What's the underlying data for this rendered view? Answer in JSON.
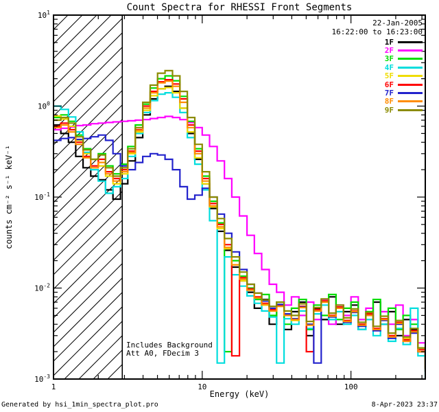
{
  "title": "Count Spectra for RHESSI Front Segments",
  "annotations": {
    "date": "22-Jan-2005",
    "time_range": "16:22:00 to 16:23:00",
    "note1": "Includes Background",
    "note2": "Att A0, FDecim 3"
  },
  "footer": {
    "left": "Generated by hsi_1min_spectra_plot.pro",
    "right": "8-Apr-2023 23:37"
  },
  "chart_data": {
    "type": "line",
    "step": true,
    "x_scale": "log",
    "y_scale": "log",
    "xlabel": "Energy (keV)",
    "ylabel": "counts cm⁻² s⁻¹ keV⁻¹",
    "xlim": [
      1,
      316
    ],
    "ylim": [
      0.001,
      10
    ],
    "grid": false,
    "legend_position": "top-right",
    "x_major_ticks": [
      {
        "value": 1,
        "label": "1"
      },
      {
        "value": 10,
        "label": "10"
      },
      {
        "value": 100,
        "label": "100"
      }
    ],
    "y_major_ticks": [
      {
        "exp": 1,
        "label": "10^1"
      },
      {
        "exp": 0,
        "label": "10^0"
      },
      {
        "exp": -1,
        "label": "10^-1"
      },
      {
        "exp": -2,
        "label": "10^-2"
      },
      {
        "exp": -3,
        "label": "10^-3"
      }
    ],
    "hatch_region": {
      "xmin": 1,
      "xmax": 2.9
    },
    "energies_keV": [
      1.0,
      1.12,
      1.26,
      1.41,
      1.58,
      1.78,
      2.0,
      2.24,
      2.51,
      2.82,
      3.16,
      3.55,
      3.98,
      4.47,
      5.01,
      5.62,
      6.31,
      7.08,
      7.94,
      8.91,
      10.0,
      11.2,
      12.6,
      14.1,
      15.8,
      17.8,
      20.0,
      22.4,
      25.1,
      28.2,
      31.6,
      35.5,
      39.8,
      44.7,
      50.1,
      56.2,
      63.1,
      70.8,
      79.4,
      89.1,
      100.0,
      112.0,
      126.0,
      141.0,
      158.0,
      178.0,
      200.0,
      224.0,
      251.0,
      282.0,
      316.0
    ],
    "series": [
      {
        "name": "1F",
        "color": "#000000",
        "values": [
          0.62,
          0.5,
          0.4,
          0.28,
          0.21,
          0.17,
          0.155,
          0.12,
          0.095,
          0.14,
          0.25,
          0.45,
          0.8,
          1.2,
          1.55,
          1.65,
          1.45,
          0.95,
          0.5,
          0.26,
          0.14,
          0.075,
          0.042,
          0.026,
          0.017,
          0.012,
          0.009,
          0.006,
          0.0075,
          0.004,
          0.0065,
          0.0035,
          0.0055,
          0.007,
          0.003,
          0.006,
          0.0045,
          0.008,
          0.004,
          0.0055,
          0.0065,
          0.0035,
          0.005,
          0.007,
          0.004,
          0.0055,
          0.003,
          0.0045,
          0.0035,
          0.002,
          0.0013
        ]
      },
      {
        "name": "2F",
        "color": "#FF00FF",
        "values": [
          0.55,
          0.57,
          0.59,
          0.61,
          0.62,
          0.64,
          0.65,
          0.66,
          0.67,
          0.68,
          0.69,
          0.7,
          0.71,
          0.73,
          0.75,
          0.77,
          0.75,
          0.71,
          0.66,
          0.58,
          0.48,
          0.36,
          0.25,
          0.16,
          0.1,
          0.062,
          0.038,
          0.024,
          0.016,
          0.011,
          0.009,
          0.0065,
          0.008,
          0.005,
          0.007,
          0.0045,
          0.0075,
          0.004,
          0.0065,
          0.005,
          0.008,
          0.0045,
          0.006,
          0.0035,
          0.0055,
          0.004,
          0.0065,
          0.003,
          0.0045,
          0.0025,
          0.0016
        ]
      },
      {
        "name": "3F",
        "color": "#00DD00",
        "values": [
          0.75,
          0.8,
          0.68,
          0.48,
          0.34,
          0.26,
          0.3,
          0.22,
          0.18,
          0.23,
          0.36,
          0.62,
          1.05,
          1.58,
          2.0,
          2.15,
          1.9,
          1.28,
          0.68,
          0.34,
          0.17,
          0.09,
          0.052,
          0.002,
          0.02,
          0.0135,
          0.01,
          0.0075,
          0.0085,
          0.005,
          0.007,
          0.004,
          0.006,
          0.0075,
          0.0035,
          0.0065,
          0.005,
          0.0085,
          0.0045,
          0.006,
          0.007,
          0.004,
          0.0055,
          0.0075,
          0.0045,
          0.006,
          0.0035,
          0.005,
          0.004,
          0.0022,
          0.0012
        ]
      },
      {
        "name": "4F",
        "color": "#00DDDD",
        "values": [
          1.0,
          0.92,
          0.76,
          0.52,
          0.31,
          0.2,
          0.15,
          0.11,
          0.13,
          0.16,
          0.28,
          0.5,
          0.85,
          1.15,
          1.35,
          1.4,
          1.25,
          0.85,
          0.45,
          0.23,
          0.12,
          0.055,
          0.0015,
          0.022,
          0.014,
          0.0105,
          0.0082,
          0.0068,
          0.0056,
          0.0048,
          0.0015,
          0.0046,
          0.004,
          0.0056,
          0.0036,
          0.0052,
          0.0065,
          0.0045,
          0.0055,
          0.004,
          0.005,
          0.0035,
          0.0045,
          0.003,
          0.004,
          0.0026,
          0.0036,
          0.0024,
          0.006,
          0.0018,
          0.001
        ]
      },
      {
        "name": "5F",
        "color": "#EFDC00",
        "values": [
          0.78,
          0.72,
          0.6,
          0.42,
          0.3,
          0.26,
          0.22,
          0.17,
          0.14,
          0.18,
          0.3,
          0.52,
          0.9,
          1.3,
          1.55,
          1.6,
          1.4,
          0.95,
          0.52,
          0.27,
          0.14,
          0.078,
          0.045,
          0.027,
          0.018,
          0.012,
          0.0095,
          0.0078,
          0.0065,
          0.0056,
          0.0063,
          0.005,
          0.0044,
          0.0062,
          0.004,
          0.0056,
          0.0072,
          0.005,
          0.006,
          0.0044,
          0.0056,
          0.004,
          0.005,
          0.0035,
          0.0046,
          0.003,
          0.0042,
          0.0028,
          0.0034,
          0.0021,
          0.0013
        ]
      },
      {
        "name": "6F",
        "color": "#FF0000",
        "values": [
          0.6,
          0.65,
          0.55,
          0.4,
          0.28,
          0.22,
          0.26,
          0.19,
          0.16,
          0.2,
          0.32,
          0.55,
          1.0,
          1.45,
          1.85,
          1.95,
          1.75,
          1.2,
          0.62,
          0.32,
          0.16,
          0.085,
          0.05,
          0.03,
          0.0018,
          0.013,
          0.0098,
          0.008,
          0.0068,
          0.0058,
          0.0065,
          0.0052,
          0.0046,
          0.0063,
          0.002,
          0.0058,
          0.0072,
          0.005,
          0.0062,
          0.0044,
          0.0056,
          0.004,
          0.0052,
          0.0036,
          0.0046,
          0.003,
          0.0042,
          0.0027,
          0.0034,
          0.0021,
          0.0013
        ]
      },
      {
        "name": "7F",
        "color": "#2222CC",
        "values": [
          0.42,
          0.44,
          0.45,
          0.43,
          0.44,
          0.46,
          0.48,
          0.42,
          0.3,
          0.22,
          0.2,
          0.24,
          0.28,
          0.3,
          0.29,
          0.26,
          0.2,
          0.13,
          0.095,
          0.105,
          0.125,
          0.1,
          0.065,
          0.04,
          0.025,
          0.016,
          0.011,
          0.0088,
          0.0072,
          0.006,
          0.0066,
          0.0052,
          0.0046,
          0.0062,
          0.004,
          0.0015,
          0.007,
          0.0048,
          0.006,
          0.0042,
          0.0054,
          0.0038,
          0.005,
          0.0034,
          0.0044,
          0.0028,
          0.004,
          0.0026,
          0.0032,
          0.002,
          0.0012
        ]
      },
      {
        "name": "8F",
        "color": "#FF8C00",
        "values": [
          0.58,
          0.62,
          0.52,
          0.38,
          0.27,
          0.21,
          0.24,
          0.18,
          0.15,
          0.19,
          0.31,
          0.54,
          0.95,
          1.4,
          1.8,
          1.88,
          1.65,
          1.1,
          0.58,
          0.3,
          0.15,
          0.08,
          0.047,
          0.028,
          0.018,
          0.0125,
          0.0095,
          0.0078,
          0.0066,
          0.0056,
          0.0063,
          0.005,
          0.0045,
          0.0061,
          0.0039,
          0.0056,
          0.007,
          0.0049,
          0.006,
          0.0043,
          0.0055,
          0.0039,
          0.005,
          0.0035,
          0.0045,
          0.0029,
          0.0041,
          0.0026,
          0.0033,
          0.002,
          0.0012
        ]
      },
      {
        "name": "9F",
        "color": "#8B8B00",
        "values": [
          0.7,
          0.75,
          0.65,
          0.46,
          0.33,
          0.26,
          0.29,
          0.21,
          0.17,
          0.21,
          0.34,
          0.58,
          1.1,
          1.7,
          2.3,
          2.45,
          2.15,
          1.45,
          0.75,
          0.38,
          0.19,
          0.1,
          0.058,
          0.035,
          0.022,
          0.015,
          0.011,
          0.0088,
          0.0074,
          0.0063,
          0.007,
          0.0056,
          0.005,
          0.0067,
          0.0043,
          0.0061,
          0.0076,
          0.0053,
          0.0065,
          0.0047,
          0.0059,
          0.0042,
          0.0054,
          0.0038,
          0.0049,
          0.0032,
          0.0044,
          0.0029,
          0.0036,
          0.0022,
          0.0013
        ]
      }
    ]
  }
}
